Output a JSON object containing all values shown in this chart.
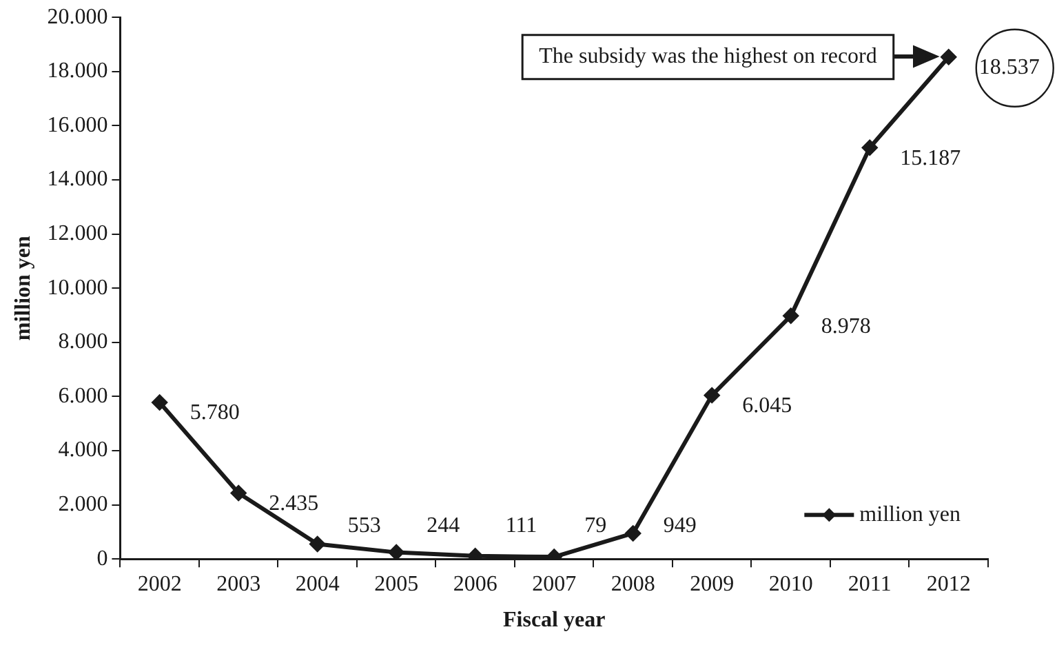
{
  "chart_data": {
    "type": "line",
    "xlabel": "Fiscal year",
    "ylabel": "million yen",
    "categories": [
      "2002",
      "2003",
      "2004",
      "2005",
      "2006",
      "2007",
      "2008",
      "2009",
      "2010",
      "2011",
      "2012"
    ],
    "series": [
      {
        "name": "million yen",
        "color": "#1a1a1a",
        "values": [
          5780,
          2435,
          553,
          244,
          111,
          79,
          949,
          6045,
          8978,
          15187,
          18537
        ],
        "value_labels": [
          "5.780",
          "2.435",
          "553",
          "244",
          "111",
          "79",
          "949",
          "6.045",
          "8.978",
          "15.187",
          "18.537"
        ]
      }
    ],
    "ylim": [
      0,
      20000
    ],
    "yticks": [
      {
        "value": 0,
        "label": "0"
      },
      {
        "value": 2000,
        "label": "2.000"
      },
      {
        "value": 4000,
        "label": "4.000"
      },
      {
        "value": 6000,
        "label": "6.000"
      },
      {
        "value": 8000,
        "label": "8.000"
      },
      {
        "value": 10000,
        "label": "10.000"
      },
      {
        "value": 12000,
        "label": "12.000"
      },
      {
        "value": 14000,
        "label": "14.000"
      },
      {
        "value": 16000,
        "label": "16.000"
      },
      {
        "value": 18000,
        "label": "18.000"
      },
      {
        "value": 20000,
        "label": "20.000"
      }
    ],
    "grid": false,
    "legend": "bottom right",
    "marker": "diamond",
    "line_style": "solid",
    "annotations": [
      "The subsidy was the highest on record"
    ]
  }
}
